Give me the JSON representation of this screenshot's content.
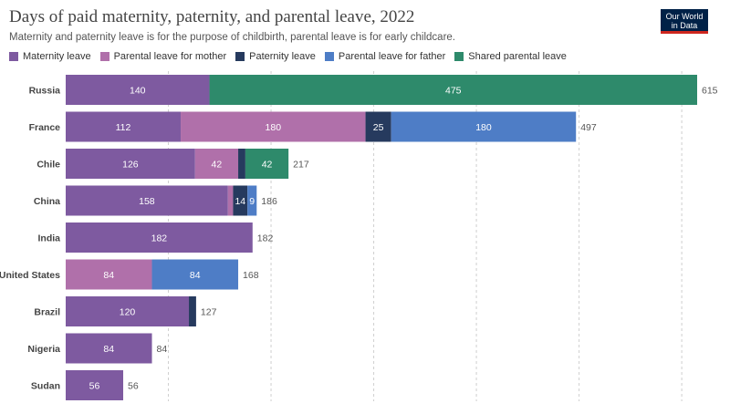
{
  "header": {
    "title": "Days of paid maternity, paternity, and parental leave, 2022",
    "subtitle": "Maternity and paternity leave is for the purpose of childbirth, parental leave is for early childcare.",
    "logo_line1": "Our World",
    "logo_line2": "in Data"
  },
  "legend": [
    {
      "label": "Maternity leave",
      "color": "#7e5aa0"
    },
    {
      "label": "Parental leave for mother",
      "color": "#b070aa"
    },
    {
      "label": "Paternity leave",
      "color": "#263a5e"
    },
    {
      "label": "Parental leave for father",
      "color": "#4e7dc6"
    },
    {
      "label": "Shared parental leave",
      "color": "#2e8a6b"
    }
  ],
  "chart_data": {
    "type": "bar",
    "orientation": "horizontal",
    "stacked": true,
    "title": "Days of paid maternity, paternity, and parental leave, 2022",
    "subtitle": "Maternity and paternity leave is for the purpose of childbirth, parental leave is for early childcare.",
    "categories": [
      "Russia",
      "France",
      "Chile",
      "China",
      "India",
      "United States",
      "Brazil",
      "Nigeria",
      "Sudan"
    ],
    "series": [
      {
        "name": "Maternity leave",
        "color": "#7e5aa0",
        "values": [
          140,
          112,
          126,
          158,
          182,
          0,
          120,
          84,
          56
        ]
      },
      {
        "name": "Parental leave for mother",
        "color": "#b070aa",
        "values": [
          0,
          180,
          42,
          5,
          0,
          84,
          0,
          0,
          0
        ]
      },
      {
        "name": "Paternity leave",
        "color": "#263a5e",
        "values": [
          0,
          25,
          7,
          14,
          0,
          0,
          7,
          0,
          0
        ]
      },
      {
        "name": "Parental leave for father",
        "color": "#4e7dc6",
        "values": [
          0,
          180,
          0,
          9,
          0,
          84,
          0,
          0,
          0
        ]
      },
      {
        "name": "Shared parental leave",
        "color": "#2e8a6b",
        "values": [
          475,
          0,
          42,
          0,
          0,
          0,
          0,
          0,
          0
        ]
      }
    ],
    "totals": [
      615,
      497,
      217,
      186,
      182,
      168,
      127,
      84,
      56
    ],
    "xlim": [
      0,
      615
    ],
    "gridlines": [
      0,
      100,
      200,
      300,
      400,
      500,
      600
    ],
    "grid": true,
    "legend_position": "top-left"
  }
}
